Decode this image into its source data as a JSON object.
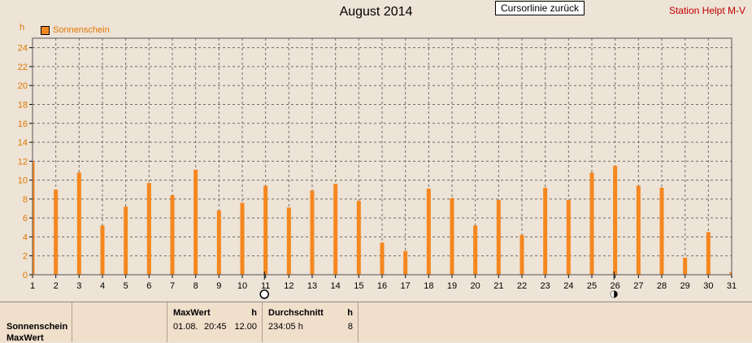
{
  "chart_data": {
    "type": "bar",
    "title": "August 2014",
    "ylabel": "h",
    "ylim": [
      0,
      25
    ],
    "yticks": [
      0,
      2,
      4,
      6,
      8,
      10,
      12,
      14,
      16,
      18,
      20,
      22,
      24
    ],
    "x": [
      1,
      2,
      3,
      4,
      5,
      6,
      7,
      8,
      9,
      10,
      11,
      12,
      13,
      14,
      15,
      16,
      17,
      18,
      19,
      20,
      21,
      22,
      23,
      24,
      25,
      26,
      27,
      28,
      29,
      30,
      31
    ],
    "series": [
      {
        "name": "Sonnenschein",
        "color": "#f5871f",
        "values": [
          12.0,
          9.0,
          10.8,
          5.2,
          7.2,
          9.7,
          8.4,
          11.1,
          6.8,
          7.6,
          9.4,
          7.1,
          8.9,
          9.6,
          7.8,
          3.4,
          2.5,
          9.1,
          8.1,
          5.2,
          7.9,
          4.2,
          9.2,
          7.9,
          10.8,
          11.5,
          9.4,
          9.2,
          1.8,
          4.5,
          0.3
        ]
      }
    ],
    "grid": true,
    "legend": "top-left",
    "cursor_markers": [
      {
        "x": 11,
        "marker": "circle-open-icon"
      },
      {
        "x": 26,
        "marker": "circle-half-icon"
      }
    ]
  },
  "header": {
    "cursor_button": "Cursorlinie zurück",
    "station": "Station Helpt M-V",
    "unit": "h",
    "legend_label": "Sonnenschein"
  },
  "summary": {
    "row1_label": "Sonnenschein",
    "row2_label": "MaxWert",
    "max": {
      "title": "MaxWert",
      "unit": "h",
      "date": "01.08.",
      "time": "20:45",
      "value": "12.00"
    },
    "avg": {
      "title": "Durchschnitt",
      "unit": "h",
      "total": "234:05 h",
      "value": "8"
    }
  }
}
